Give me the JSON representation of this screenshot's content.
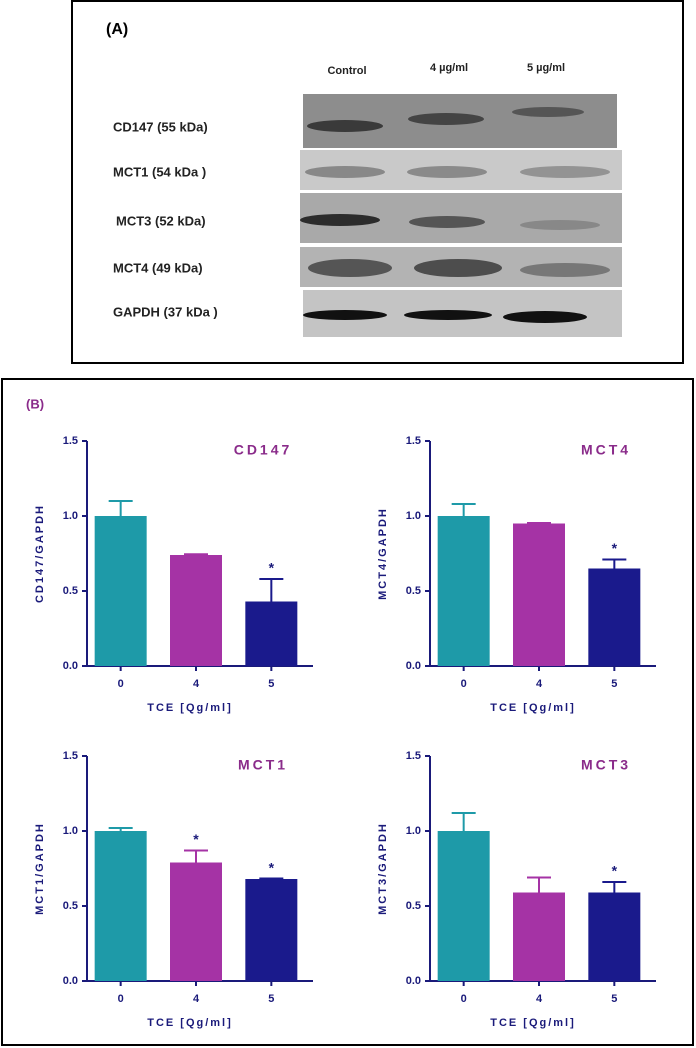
{
  "panel_a": {
    "label": "(A)",
    "lanes": [
      "Control",
      "4 µg/ml",
      "5 µg/ml"
    ],
    "rows": [
      "CD147 (55 kDa)",
      "MCT1 (54 kDa )",
      "MCT3 (52 kDa)",
      "MCT4 (49 kDa)",
      "GAPDH (37 kDa )"
    ]
  },
  "panel_b_label": "(B)",
  "chart_data": [
    {
      "type": "bar",
      "title": "CD147",
      "x_label": "TCE [Qg/ml]",
      "y_label": "CD147/GAPDH",
      "categories": [
        "0",
        "4",
        "5"
      ],
      "values": [
        1.0,
        0.74,
        0.43
      ],
      "errors": [
        0.1,
        0.005,
        0.15
      ],
      "significance": [
        null,
        null,
        "*"
      ],
      "colors": [
        "#1e9aa8",
        "#a533a5",
        "#1a1a8c"
      ],
      "ylim": [
        0,
        1.5
      ],
      "yticks": [
        {
          "value": 0,
          "label": "0.0"
        },
        0.5,
        {
          "value": 1,
          "label": "1.0"
        },
        1.5
      ]
    },
    {
      "type": "bar",
      "title": "MCT4",
      "x_label": "TCE [Qg/ml]",
      "y_label": "MCT4/GAPDH",
      "categories": [
        "0",
        "4",
        "5"
      ],
      "values": [
        1.0,
        0.95,
        0.65
      ],
      "errors": [
        0.08,
        0.003,
        0.06
      ],
      "significance": [
        null,
        null,
        "*"
      ],
      "colors": [
        "#1e9aa8",
        "#a533a5",
        "#1a1a8c"
      ],
      "ylim": [
        0,
        1.5
      ],
      "yticks": [
        {
          "value": 0,
          "label": "0.0"
        },
        0.5,
        {
          "value": 1,
          "label": "1.0"
        },
        1.5
      ]
    },
    {
      "type": "bar",
      "title": "MCT1",
      "x_label": "TCE [Qg/ml]",
      "y_label": "MCT1/GAPDH",
      "categories": [
        "0",
        "4",
        "5"
      ],
      "values": [
        1.0,
        0.79,
        0.68
      ],
      "errors": [
        0.02,
        0.08,
        0.003
      ],
      "significance": [
        null,
        "*",
        "*"
      ],
      "colors": [
        "#1e9aa8",
        "#a533a5",
        "#1a1a8c"
      ],
      "ylim": [
        0,
        1.5
      ],
      "yticks": [
        {
          "value": 0,
          "label": "0.0"
        },
        0.5,
        {
          "value": 1,
          "label": "1.0"
        },
        1.5
      ]
    },
    {
      "type": "bar",
      "title": "MCT3",
      "x_label": "TCE [Qg/ml]",
      "y_label": "MCT3/GAPDH",
      "categories": [
        "0",
        "4",
        "5"
      ],
      "values": [
        1.0,
        0.59,
        0.59
      ],
      "errors": [
        0.12,
        0.1,
        0.07
      ],
      "significance": [
        null,
        null,
        "*"
      ],
      "colors": [
        "#1e9aa8",
        "#a533a5",
        "#1a1a8c"
      ],
      "ylim": [
        0,
        1.5
      ],
      "yticks": [
        {
          "value": 0,
          "label": "0.0"
        },
        0.5,
        {
          "value": 1,
          "label": "1.0"
        },
        1.5
      ]
    }
  ]
}
